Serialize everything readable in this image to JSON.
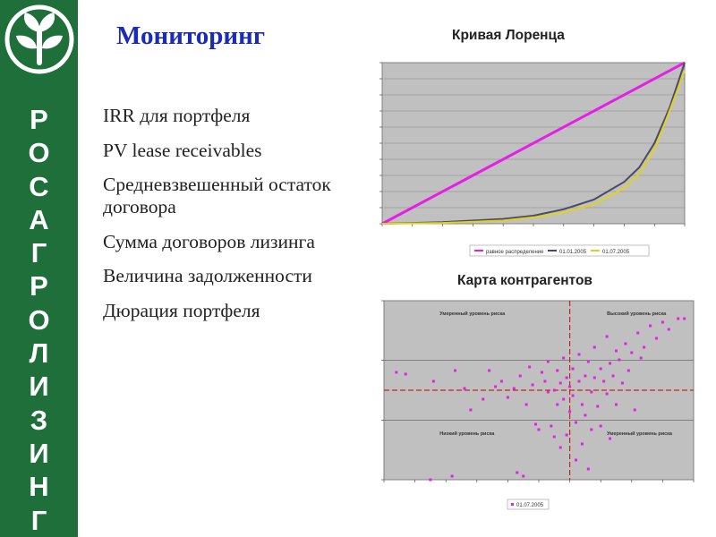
{
  "sidebar": {
    "brand_letters": [
      "Р",
      "О",
      "С",
      "А",
      "Г",
      "Р",
      "О",
      "Л",
      "И",
      "З",
      "И",
      "Н",
      "Г"
    ],
    "logo_icon": "sprout-leaf-icon",
    "background_color": "#1f6f3b"
  },
  "main": {
    "title": "Мониторинг",
    "items": [
      "IRR для портфеля",
      "PV lease receivables",
      "Средневзвешенный остаток договора",
      "Сумма договоров лизинга",
      "Величина задолженности",
      "Дюрация портфеля"
    ]
  },
  "chart_data": [
    {
      "type": "line",
      "title": "Кривая Лоренца",
      "xlim": [
        0,
        1
      ],
      "ylim": [
        0,
        1
      ],
      "grid": true,
      "legend_position": "bottom",
      "series": [
        {
          "name": "равное распределение",
          "color": "#e61fe6",
          "points": [
            [
              0,
              0
            ],
            [
              1,
              1
            ]
          ]
        },
        {
          "name": "01.01.2005",
          "color": "#4a4a66",
          "points": [
            [
              0,
              0
            ],
            [
              0.2,
              0.01
            ],
            [
              0.4,
              0.03
            ],
            [
              0.5,
              0.05
            ],
            [
              0.6,
              0.09
            ],
            [
              0.7,
              0.15
            ],
            [
              0.8,
              0.26
            ],
            [
              0.85,
              0.35
            ],
            [
              0.9,
              0.5
            ],
            [
              0.95,
              0.72
            ],
            [
              1,
              1
            ]
          ]
        },
        {
          "name": "01.07.2005",
          "color": "#e0d21e",
          "points": [
            [
              0,
              0
            ],
            [
              0.2,
              0.005
            ],
            [
              0.4,
              0.02
            ],
            [
              0.5,
              0.04
            ],
            [
              0.6,
              0.07
            ],
            [
              0.7,
              0.12
            ],
            [
              0.8,
              0.22
            ],
            [
              0.85,
              0.31
            ],
            [
              0.9,
              0.46
            ],
            [
              0.95,
              0.7
            ],
            [
              1,
              0.95
            ]
          ]
        }
      ]
    },
    {
      "type": "scatter",
      "title": "Карта контрагентов",
      "xlim": [
        0,
        1
      ],
      "ylim": [
        0,
        1
      ],
      "grid": true,
      "legend_position": "bottom",
      "threshold_x": 0.6,
      "threshold_y": 0.5,
      "quadrant_labels": [
        "Умеренный уровень риска",
        "Высокий уровень риска",
        "Низкий уровень риска",
        "Умеренный уровень риска"
      ],
      "series": [
        {
          "name": "01.07.2005",
          "color": "#e61fe6",
          "points": [
            [
              0.04,
              0.6
            ],
            [
              0.07,
              0.59
            ],
            [
              0.16,
              0.55
            ],
            [
              0.23,
              0.61
            ],
            [
              0.26,
              0.51
            ],
            [
              0.28,
              0.39
            ],
            [
              0.32,
              0.45
            ],
            [
              0.36,
              0.52
            ],
            [
              0.38,
              0.55
            ],
            [
              0.4,
              0.46
            ],
            [
              0.42,
              0.51
            ],
            [
              0.44,
              0.58
            ],
            [
              0.46,
              0.42
            ],
            [
              0.47,
              0.63
            ],
            [
              0.48,
              0.53
            ],
            [
              0.49,
              0.31
            ],
            [
              0.5,
              0.28
            ],
            [
              0.51,
              0.6
            ],
            [
              0.52,
              0.55
            ],
            [
              0.53,
              0.66
            ],
            [
              0.53,
              0.49
            ],
            [
              0.54,
              0.3
            ],
            [
              0.55,
              0.24
            ],
            [
              0.55,
              0.5
            ],
            [
              0.56,
              0.61
            ],
            [
              0.56,
              0.42
            ],
            [
              0.57,
              0.54
            ],
            [
              0.57,
              0.18
            ],
            [
              0.58,
              0.68
            ],
            [
              0.58,
              0.45
            ],
            [
              0.59,
              0.57
            ],
            [
              0.59,
              0.25
            ],
            [
              0.6,
              0.52
            ],
            [
              0.6,
              0.38
            ],
            [
              0.61,
              0.62
            ],
            [
              0.61,
              0.47
            ],
            [
              0.62,
              0.32
            ],
            [
              0.62,
              0.11
            ],
            [
              0.63,
              0.7
            ],
            [
              0.63,
              0.55
            ],
            [
              0.64,
              0.42
            ],
            [
              0.64,
              0.2
            ],
            [
              0.65,
              0.58
            ],
            [
              0.65,
              0.36
            ],
            [
              0.66,
              0.66
            ],
            [
              0.67,
              0.49
            ],
            [
              0.67,
              0.28
            ],
            [
              0.68,
              0.74
            ],
            [
              0.68,
              0.57
            ],
            [
              0.69,
              0.41
            ],
            [
              0.7,
              0.62
            ],
            [
              0.7,
              0.3
            ],
            [
              0.71,
              0.55
            ],
            [
              0.72,
              0.8
            ],
            [
              0.72,
              0.48
            ],
            [
              0.73,
              0.65
            ],
            [
              0.73,
              0.23
            ],
            [
              0.74,
              0.58
            ],
            [
              0.75,
              0.72
            ],
            [
              0.75,
              0.42
            ],
            [
              0.76,
              0.67
            ],
            [
              0.77,
              0.54
            ],
            [
              0.78,
              0.76
            ],
            [
              0.79,
              0.61
            ],
            [
              0.8,
              0.71
            ],
            [
              0.81,
              0.39
            ],
            [
              0.82,
              0.82
            ],
            [
              0.83,
              0.68
            ],
            [
              0.84,
              0.74
            ],
            [
              0.86,
              0.86
            ],
            [
              0.88,
              0.79
            ],
            [
              0.9,
              0.88
            ],
            [
              0.92,
              0.84
            ],
            [
              0.95,
              0.9
            ],
            [
              0.97,
              0.9
            ],
            [
              0.34,
              0.61
            ],
            [
              0.43,
              0.04
            ],
            [
              0.45,
              0.02
            ],
            [
              0.66,
              0.06
            ],
            [
              0.22,
              0.02
            ],
            [
              0.15,
              0.0
            ]
          ]
        }
      ]
    }
  ]
}
